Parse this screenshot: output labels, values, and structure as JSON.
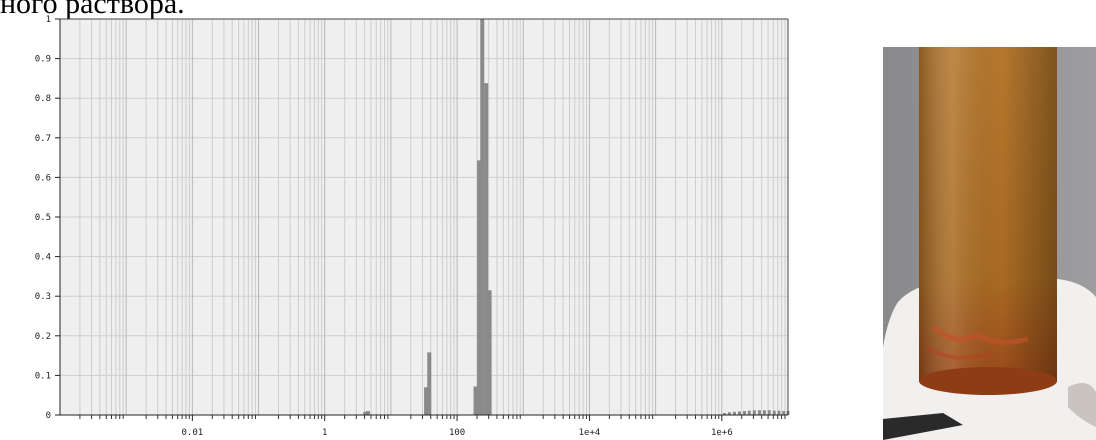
{
  "caption": "ного раствора.",
  "chart_data": {
    "type": "bar",
    "x_scale": "log",
    "xlim": [
      0.0001,
      10000000
    ],
    "ylim": [
      0,
      1
    ],
    "x_tick_labels": [
      "0.01",
      "1",
      "100",
      "1e+4",
      "1e+6"
    ],
    "x_tick_values": [
      0.01,
      1,
      100,
      10000,
      1000000
    ],
    "y_tick_labels": [
      "0",
      "0.1",
      "0.2",
      "0.3",
      "0.4",
      "0.5",
      "0.6",
      "0.7",
      "0.8",
      "0.9",
      "1"
    ],
    "y_tick_values": [
      0,
      0.1,
      0.2,
      0.3,
      0.4,
      0.5,
      0.6,
      0.7,
      0.8,
      0.9,
      1
    ],
    "grid": true,
    "bar_color": "#8a8a8a",
    "points": [
      {
        "x": 4.1,
        "y": 0.008
      },
      {
        "x": 4.5,
        "y": 0.01
      },
      {
        "x": 34,
        "y": 0.07
      },
      {
        "x": 38,
        "y": 0.158
      },
      {
        "x": 190,
        "y": 0.072
      },
      {
        "x": 215,
        "y": 0.643
      },
      {
        "x": 240,
        "y": 1.0
      },
      {
        "x": 275,
        "y": 0.838
      },
      {
        "x": 310,
        "y": 0.315
      },
      {
        "x": 1100000,
        "y": 0.005
      },
      {
        "x": 1300000,
        "y": 0.007
      },
      {
        "x": 1550000,
        "y": 0.008
      },
      {
        "x": 1850000,
        "y": 0.009
      },
      {
        "x": 2200000,
        "y": 0.01
      },
      {
        "x": 2600000,
        "y": 0.011
      },
      {
        "x": 3100000,
        "y": 0.012
      },
      {
        "x": 3700000,
        "y": 0.012
      },
      {
        "x": 4400000,
        "y": 0.012
      },
      {
        "x": 5200000,
        "y": 0.012
      },
      {
        "x": 6200000,
        "y": 0.011
      },
      {
        "x": 7300000,
        "y": 0.011
      },
      {
        "x": 8600000,
        "y": 0.01
      },
      {
        "x": 10000000,
        "y": 0.01
      }
    ]
  },
  "photo": {
    "colors": {
      "background": "#8a8a8c",
      "tube_top": "#b5782e",
      "tube_mid": "#a86a22",
      "tube_bottom": "#9a4a1a",
      "base": "#f2f0ee"
    }
  }
}
